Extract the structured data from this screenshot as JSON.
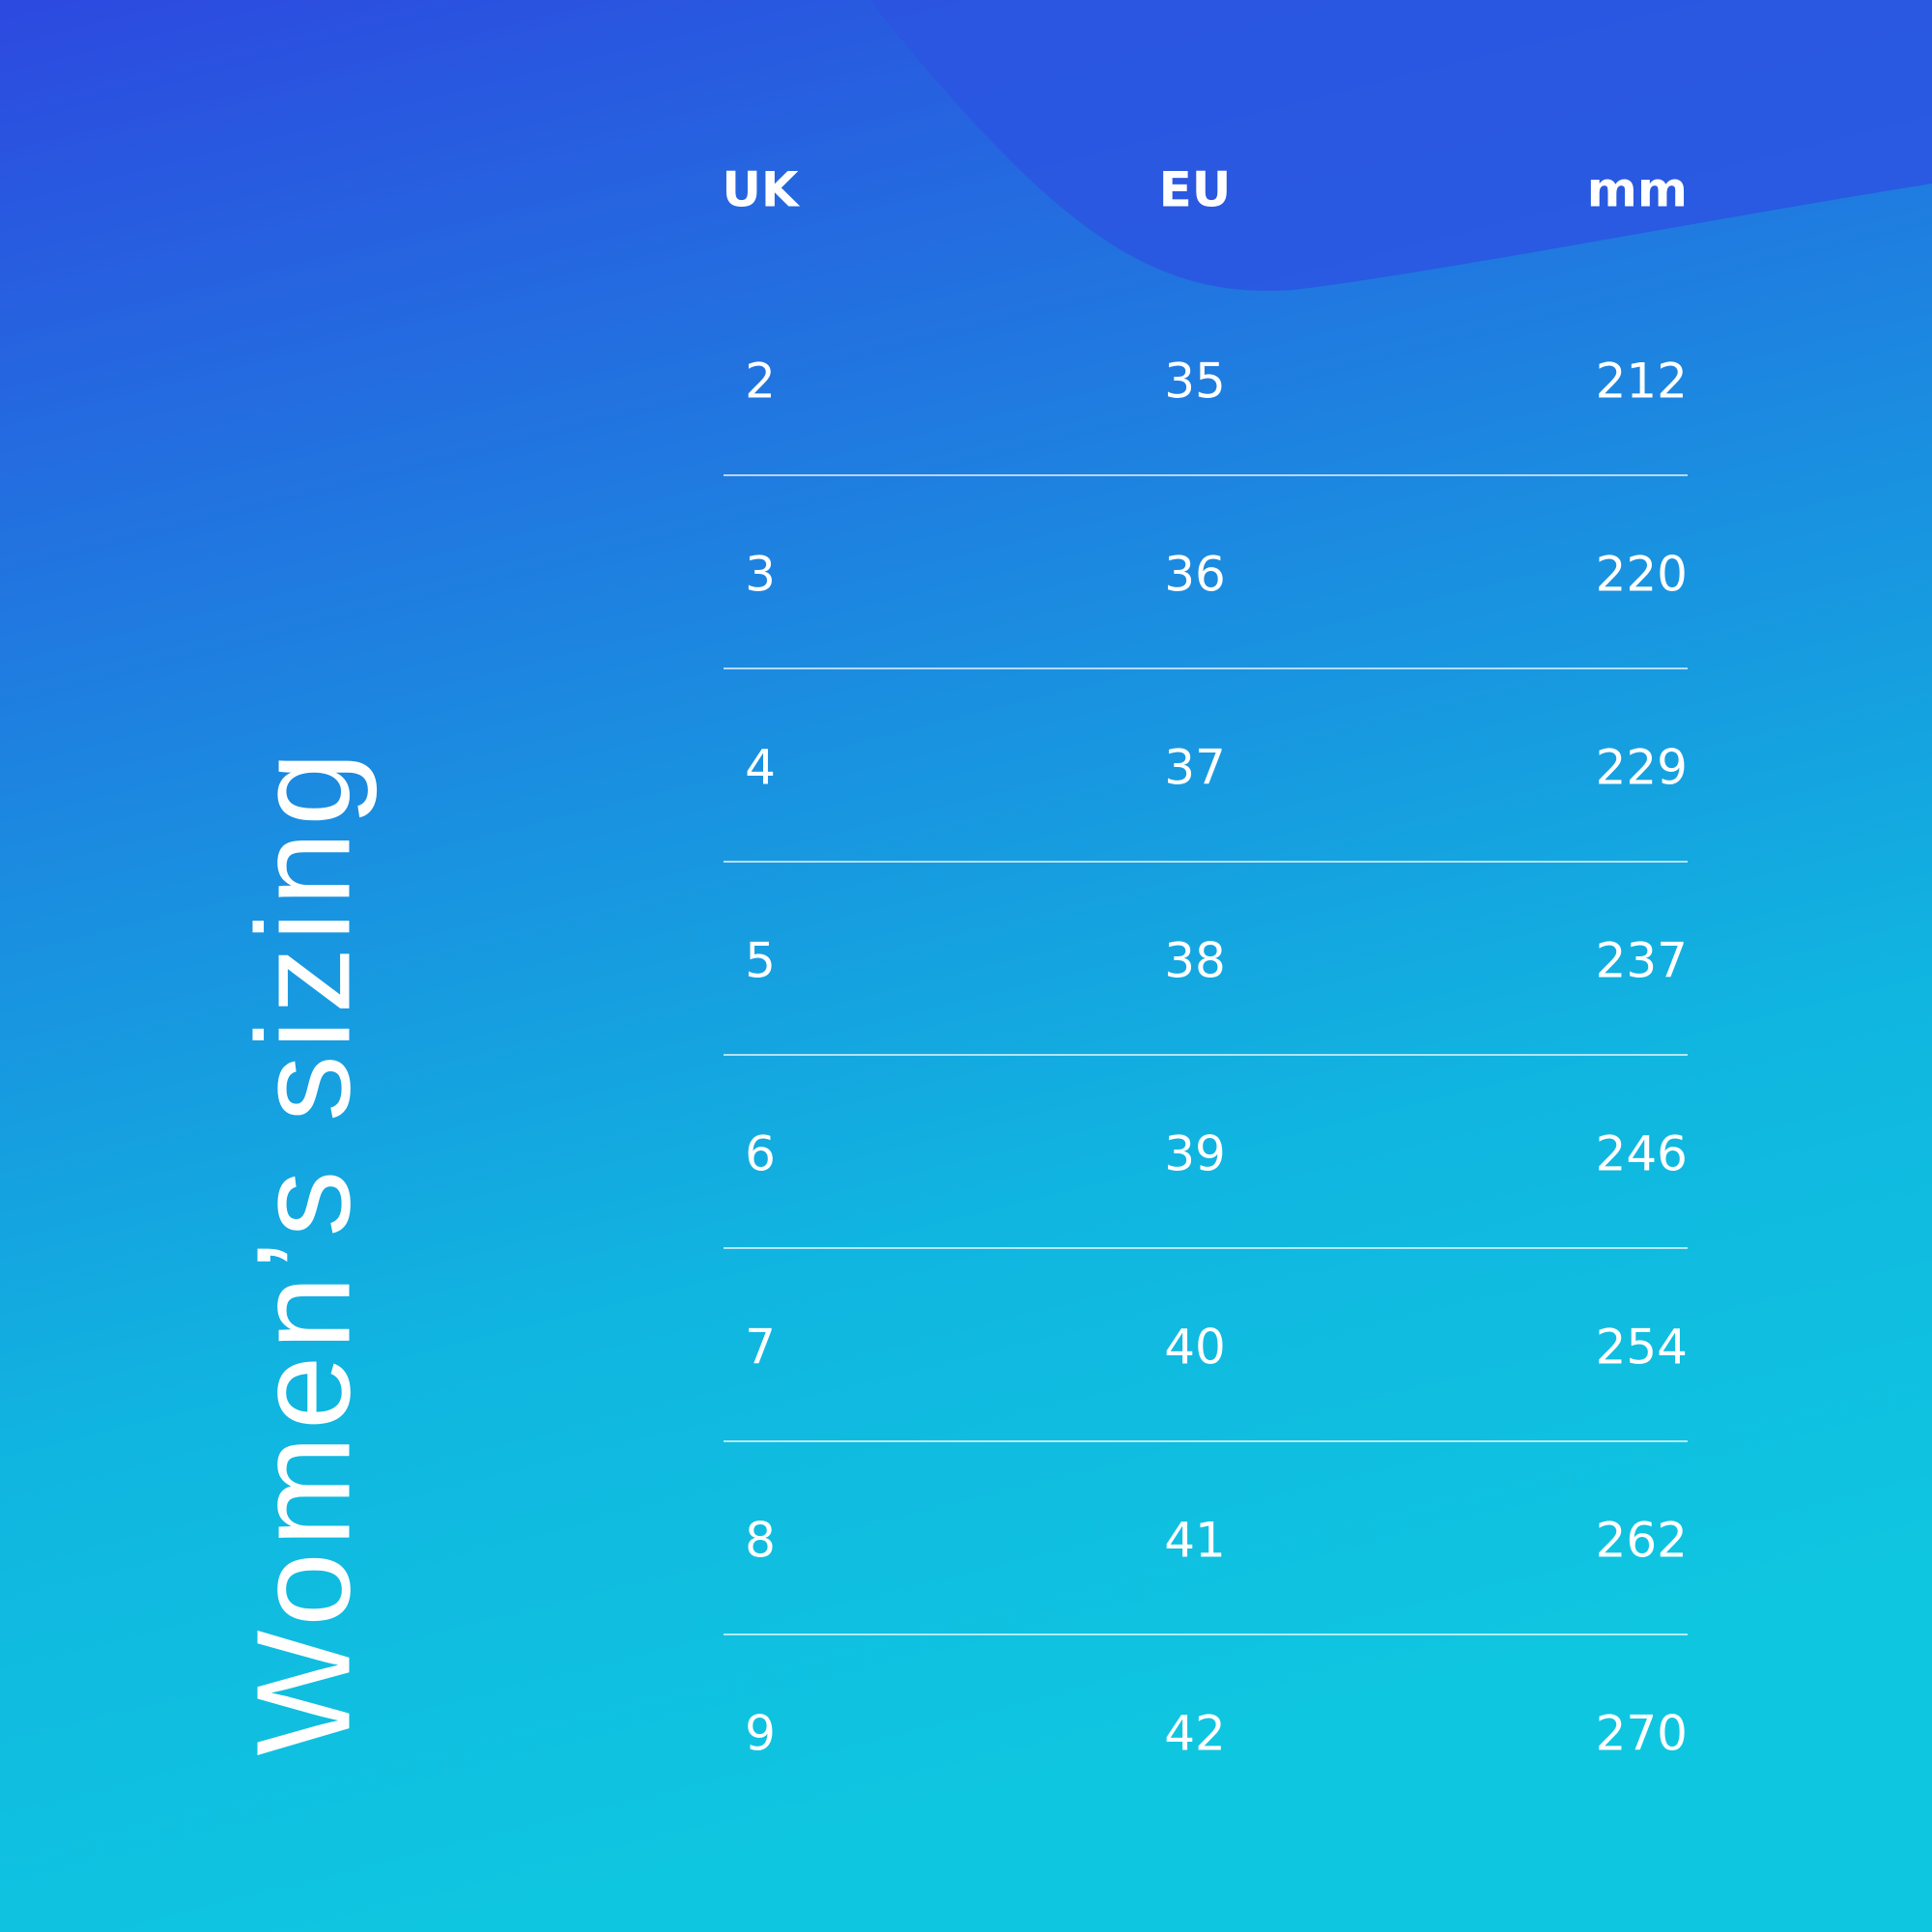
{
  "title": "Women’s sizing",
  "table": {
    "header": [
      "UK",
      "EU",
      "mm"
    ],
    "rows": [
      [
        2,
        35,
        212
      ],
      [
        3,
        36,
        220
      ],
      [
        4,
        37,
        229
      ],
      [
        5,
        38,
        237
      ],
      [
        6,
        39,
        246
      ],
      [
        7,
        40,
        254
      ],
      [
        8,
        41,
        262
      ],
      [
        9,
        42,
        270
      ]
    ]
  }
}
